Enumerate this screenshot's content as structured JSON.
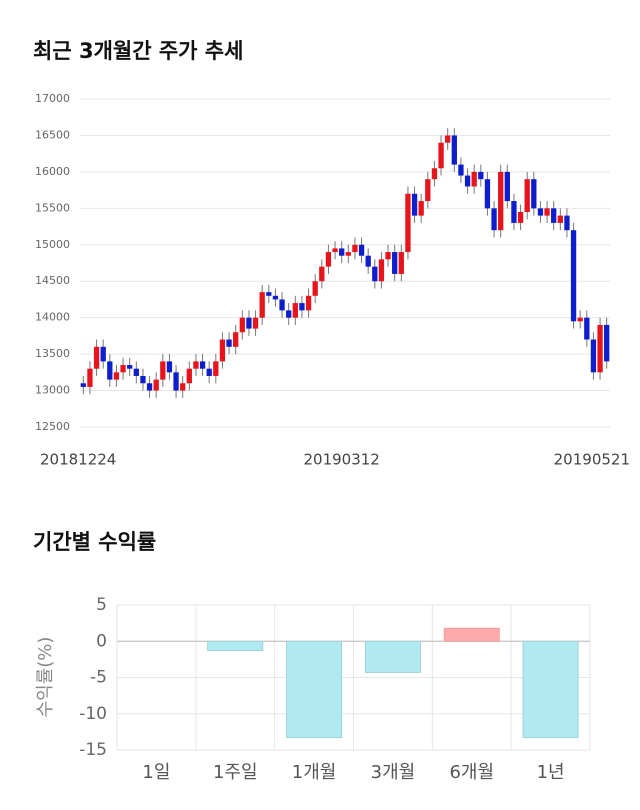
{
  "chart_data": [
    {
      "type": "candlestick",
      "title": "최근 3개월간 주가 추세",
      "categories": [
        "20181224",
        null,
        null,
        null,
        null,
        null,
        null,
        null,
        null,
        null,
        null,
        null,
        null,
        null,
        null,
        null,
        null,
        null,
        null,
        null,
        null,
        null,
        null,
        null,
        null,
        null,
        null,
        null,
        null,
        null,
        null,
        null,
        null,
        null,
        null,
        null,
        null,
        null,
        null,
        "20190312",
        null,
        null,
        null,
        null,
        null,
        null,
        null,
        null,
        null,
        null,
        null,
        null,
        null,
        null,
        null,
        null,
        null,
        null,
        null,
        null,
        null,
        null,
        null,
        null,
        null,
        null,
        null,
        null,
        null,
        null,
        null,
        null,
        null,
        null,
        null,
        null,
        null,
        null,
        null,
        "20190521"
      ],
      "open": [
        13100,
        13050,
        13300,
        13600,
        13400,
        13150,
        13250,
        13350,
        13300,
        13200,
        13100,
        13000,
        13150,
        13400,
        13250,
        13000,
        13100,
        13300,
        13400,
        13300,
        13200,
        13400,
        13700,
        13600,
        13800,
        14000,
        13850,
        14000,
        14350,
        14300,
        14250,
        14100,
        14000,
        14200,
        14100,
        14300,
        14500,
        14700,
        14900,
        14950,
        14850,
        14900,
        15000,
        14850,
        14700,
        14500,
        14800,
        14900,
        14600,
        14900,
        15700,
        15400,
        15600,
        15900,
        16050,
        16400,
        16500,
        16100,
        15950,
        15800,
        16000,
        15900,
        15500,
        15200,
        16000,
        15600,
        15300,
        15450,
        15900,
        15500,
        15400,
        15500,
        15300,
        15400,
        15200,
        13950,
        14000,
        13700,
        13250,
        13900
      ],
      "high": [
        13200,
        13400,
        13700,
        13700,
        13500,
        13350,
        13450,
        13450,
        13400,
        13300,
        13200,
        13250,
        13500,
        13500,
        13350,
        13200,
        13400,
        13500,
        13500,
        13400,
        13500,
        13800,
        13800,
        13900,
        14100,
        14100,
        14100,
        14450,
        14450,
        14400,
        14350,
        14200,
        14300,
        14300,
        14400,
        14600,
        14800,
        15000,
        15050,
        15050,
        15000,
        15100,
        15100,
        14950,
        14800,
        14900,
        15000,
        15000,
        15000,
        15800,
        15800,
        15700,
        16000,
        16150,
        16500,
        16600,
        16600,
        16200,
        16050,
        16100,
        16100,
        16000,
        15600,
        16100,
        16100,
        15700,
        15550,
        16000,
        16000,
        15600,
        15600,
        15600,
        15500,
        15500,
        15300,
        14100,
        14100,
        13800,
        14000,
        14000
      ],
      "low": [
        12950,
        12950,
        13200,
        13300,
        13050,
        13050,
        13150,
        13200,
        13100,
        13000,
        12900,
        12900,
        13050,
        13150,
        12900,
        12900,
        13000,
        13200,
        13200,
        13100,
        13100,
        13300,
        13500,
        13500,
        13700,
        13750,
        13750,
        13900,
        14200,
        14150,
        14000,
        13900,
        13900,
        14000,
        14000,
        14200,
        14400,
        14600,
        14800,
        14750,
        14750,
        14800,
        14750,
        14600,
        14400,
        14400,
        14700,
        14500,
        14500,
        14800,
        15300,
        15300,
        15500,
        15800,
        15950,
        16300,
        16000,
        15850,
        15700,
        15700,
        15800,
        15400,
        15100,
        15100,
        15500,
        15200,
        15200,
        15350,
        15400,
        15300,
        15300,
        15200,
        15200,
        15100,
        13850,
        13850,
        13600,
        13150,
        13150,
        13300
      ],
      "close": [
        13050,
        13300,
        13600,
        13400,
        13150,
        13250,
        13350,
        13300,
        13200,
        13100,
        13000,
        13150,
        13400,
        13250,
        13000,
        13100,
        13300,
        13400,
        13300,
        13200,
        13400,
        13700,
        13600,
        13800,
        14000,
        13850,
        14000,
        14350,
        14300,
        14250,
        14100,
        14000,
        14200,
        14100,
        14300,
        14500,
        14700,
        14900,
        14950,
        14850,
        14900,
        15000,
        14850,
        14700,
        14500,
        14800,
        14900,
        14600,
        14900,
        15700,
        15400,
        15600,
        15900,
        16050,
        16400,
        16500,
        16100,
        15950,
        15800,
        16000,
        15900,
        15500,
        15200,
        16000,
        15600,
        15300,
        15450,
        15900,
        15500,
        15400,
        15500,
        15300,
        15400,
        15200,
        13950,
        14000,
        13700,
        13250,
        13900,
        13400
      ],
      "up_color": "#e8141b",
      "down_color": "#0d1ecc",
      "ylim": [
        12500,
        17000
      ],
      "yticks": [
        12500,
        13000,
        13500,
        14000,
        14500,
        15000,
        15500,
        16000,
        16500,
        17000
      ],
      "grid": true
    },
    {
      "type": "bar",
      "title": "기간별 수익률",
      "y_label": "수익률(%)",
      "categories": [
        "1일",
        "1주일",
        "1개월",
        "3개월",
        "6개월",
        "1년"
      ],
      "values": [
        0,
        -1.3,
        -13.3,
        -4.3,
        1.8,
        -13.3
      ],
      "positive_color": "#ffaaaa",
      "negative_color": "#b1e9f3",
      "ylim": [
        -15,
        5
      ],
      "yticks": [
        5,
        0,
        -5,
        -10,
        -15
      ],
      "grid": true
    }
  ]
}
